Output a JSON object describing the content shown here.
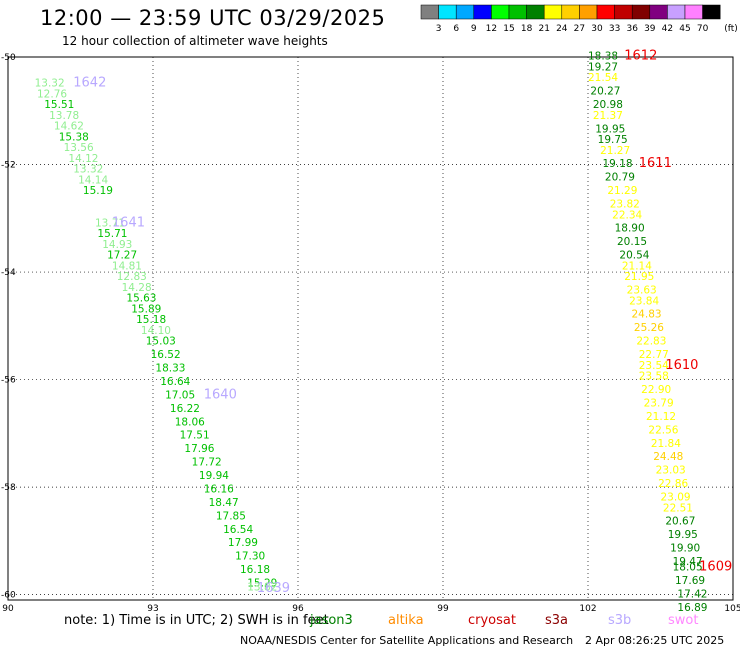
{
  "header": {
    "title": "12:00 — 23:59 UTC 03/29/2025",
    "subtitle": "12 hour collection of altimeter wave heights"
  },
  "colorbar": {
    "labels": [
      "3",
      "6",
      "9",
      "12",
      "15",
      "18",
      "21",
      "24",
      "27",
      "30",
      "33",
      "36",
      "39",
      "42",
      "45",
      "70"
    ],
    "unit": "(ft)",
    "colors": [
      "#808080",
      "#00e5ff",
      "#00a8ff",
      "#0000ff",
      "#00ff00",
      "#00c000",
      "#008000",
      "#ffff00",
      "#ffd000",
      "#ffa000",
      "#ff0000",
      "#c00000",
      "#800000",
      "#800080",
      "#c8a0ff",
      "#ff80ff",
      "#000000"
    ]
  },
  "footer": {
    "note": "note:  1) Time is in UTC; 2) SWH is in feet",
    "satellites": [
      {
        "name": "jason3",
        "color": "#008000"
      },
      {
        "name": "altika",
        "color": "#ff8c00"
      },
      {
        "name": "cryosat",
        "color": "#cc0000"
      },
      {
        "name": "s3a",
        "color": "#8b0000"
      },
      {
        "name": "s3b",
        "color": "#b8a8ff"
      },
      {
        "name": "swot",
        "color": "#ff88ff"
      }
    ],
    "credit": "NOAA/NESDIS Center for Satellite Applications and Research",
    "date": "2 Apr 08:26:25 UTC 2025"
  },
  "chart_data": {
    "type": "scatter",
    "title": "12:00 — 23:59 UTC 03/29/2025",
    "xlim": [
      90,
      105
    ],
    "ylim": [
      -60.1,
      -50
    ],
    "x_ticks": [
      "90",
      "93",
      "96",
      "99",
      "102",
      "105"
    ],
    "y_ticks": [
      "-50",
      "-52",
      "-54",
      "-56",
      "-58",
      "-60"
    ],
    "grid": true,
    "series": [
      {
        "name": "left",
        "points": [
          {
            "x": 90.55,
            "y": -50.55,
            "v": "13.32",
            "c": "#90ee90"
          },
          {
            "x": 90.6,
            "y": -50.75,
            "v": "12.76",
            "c": "#90ee90"
          },
          {
            "x": 90.75,
            "y": -50.95,
            "v": "15.51",
            "c": "#00c000"
          },
          {
            "x": 90.85,
            "y": -51.15,
            "v": "13.78",
            "c": "#90ee90"
          },
          {
            "x": 90.95,
            "y": -51.35,
            "v": "14.62",
            "c": "#90ee90"
          },
          {
            "x": 91.05,
            "y": -51.55,
            "v": "15.38",
            "c": "#00c000"
          },
          {
            "x": 91.15,
            "y": -51.75,
            "v": "13.56",
            "c": "#90ee90"
          },
          {
            "x": 91.25,
            "y": -51.95,
            "v": "14.12",
            "c": "#90ee90"
          },
          {
            "x": 91.35,
            "y": -52.15,
            "v": "13.32",
            "c": "#90ee90"
          },
          {
            "x": 91.45,
            "y": -52.35,
            "v": "14.14",
            "c": "#90ee90"
          },
          {
            "x": 91.55,
            "y": -52.55,
            "v": "15.19",
            "c": "#00c000"
          },
          {
            "x": 91.8,
            "y": -53.15,
            "v": "13.71",
            "c": "#90ee90"
          },
          {
            "x": 91.85,
            "y": -53.35,
            "v": "15.71",
            "c": "#00c000"
          },
          {
            "x": 91.95,
            "y": -53.55,
            "v": "14.93",
            "c": "#90ee90"
          },
          {
            "x": 92.05,
            "y": -53.75,
            "v": "17.27",
            "c": "#00c000"
          },
          {
            "x": 92.15,
            "y": -53.95,
            "v": "14.81",
            "c": "#90ee90"
          },
          {
            "x": 92.25,
            "y": -54.15,
            "v": "12.83",
            "c": "#90ee90"
          },
          {
            "x": 92.35,
            "y": -54.35,
            "v": "14.28",
            "c": "#90ee90"
          },
          {
            "x": 92.45,
            "y": -54.55,
            "v": "15.63",
            "c": "#00c000"
          },
          {
            "x": 92.55,
            "y": -54.75,
            "v": "15.89",
            "c": "#00c000"
          },
          {
            "x": 92.65,
            "y": -54.95,
            "v": "15.18",
            "c": "#00c000"
          },
          {
            "x": 92.75,
            "y": -55.15,
            "v": "14.10",
            "c": "#90ee90"
          },
          {
            "x": 92.85,
            "y": -55.35,
            "v": "15.03",
            "c": "#00c000"
          },
          {
            "x": 92.95,
            "y": -55.6,
            "v": "16.52",
            "c": "#00c000"
          },
          {
            "x": 93.05,
            "y": -55.85,
            "v": "18.33",
            "c": "#00c000"
          },
          {
            "x": 93.15,
            "y": -56.1,
            "v": "16.64",
            "c": "#00c000"
          },
          {
            "x": 93.25,
            "y": -56.35,
            "v": "17.05",
            "c": "#00c000"
          },
          {
            "x": 93.35,
            "y": -56.6,
            "v": "16.22",
            "c": "#00c000"
          },
          {
            "x": 93.45,
            "y": -56.85,
            "v": "18.06",
            "c": "#00c000"
          },
          {
            "x": 93.55,
            "y": -57.1,
            "v": "17.51",
            "c": "#00c000"
          },
          {
            "x": 93.65,
            "y": -57.35,
            "v": "17.96",
            "c": "#00c000"
          },
          {
            "x": 93.8,
            "y": -57.6,
            "v": "17.72",
            "c": "#00c000"
          },
          {
            "x": 93.95,
            "y": -57.85,
            "v": "19.94",
            "c": "#00c000"
          },
          {
            "x": 94.05,
            "y": -58.1,
            "v": "16.16",
            "c": "#00c000"
          },
          {
            "x": 94.15,
            "y": -58.35,
            "v": "18.47",
            "c": "#00c000"
          },
          {
            "x": 94.3,
            "y": -58.6,
            "v": "17.85",
            "c": "#00c000"
          },
          {
            "x": 94.45,
            "y": -58.85,
            "v": "16.54",
            "c": "#00c000"
          },
          {
            "x": 94.55,
            "y": -59.1,
            "v": "17.99",
            "c": "#00c000"
          },
          {
            "x": 94.7,
            "y": -59.35,
            "v": "17.30",
            "c": "#00c000"
          },
          {
            "x": 94.8,
            "y": -59.6,
            "v": "16.18",
            "c": "#00c000"
          },
          {
            "x": 94.95,
            "y": -59.85,
            "v": "15.29",
            "c": "#00c000"
          },
          {
            "x": 94.95,
            "y": -59.92,
            "v": "13.82",
            "c": "#90ee90"
          }
        ]
      },
      {
        "name": "right",
        "points": [
          {
            "x": 102.0,
            "y": -50.05,
            "v": "18.38",
            "c": "#008000"
          },
          {
            "x": 102.0,
            "y": -50.25,
            "v": "19.27",
            "c": "#008000"
          },
          {
            "x": 102.0,
            "y": -50.45,
            "v": "21.54",
            "c": "#ffff00"
          },
          {
            "x": 102.05,
            "y": -50.7,
            "v": "20.27",
            "c": "#008000"
          },
          {
            "x": 102.1,
            "y": -50.95,
            "v": "20.98",
            "c": "#008000"
          },
          {
            "x": 102.1,
            "y": -51.15,
            "v": "21.37",
            "c": "#ffff00"
          },
          {
            "x": 102.15,
            "y": -51.4,
            "v": "19.95",
            "c": "#008000"
          },
          {
            "x": 102.2,
            "y": -51.6,
            "v": "19.75",
            "c": "#008000"
          },
          {
            "x": 102.25,
            "y": -51.8,
            "v": "21.27",
            "c": "#ffff00"
          },
          {
            "x": 102.3,
            "y": -52.05,
            "v": "19.18",
            "c": "#008000"
          },
          {
            "x": 102.35,
            "y": -52.3,
            "v": "20.79",
            "c": "#008000"
          },
          {
            "x": 102.4,
            "y": -52.55,
            "v": "21.29",
            "c": "#ffff00"
          },
          {
            "x": 102.45,
            "y": -52.8,
            "v": "23.82",
            "c": "#ffff00"
          },
          {
            "x": 102.5,
            "y": -53.0,
            "v": "22.34",
            "c": "#ffff00"
          },
          {
            "x": 102.55,
            "y": -53.25,
            "v": "18.90",
            "c": "#008000"
          },
          {
            "x": 102.6,
            "y": -53.5,
            "v": "20.15",
            "c": "#008000"
          },
          {
            "x": 102.65,
            "y": -53.75,
            "v": "20.54",
            "c": "#008000"
          },
          {
            "x": 102.7,
            "y": -53.95,
            "v": "21.14",
            "c": "#ffff00"
          },
          {
            "x": 102.75,
            "y": -54.15,
            "v": "21.95",
            "c": "#ffff00"
          },
          {
            "x": 102.8,
            "y": -54.4,
            "v": "23.63",
            "c": "#ffff00"
          },
          {
            "x": 102.85,
            "y": -54.6,
            "v": "23.84",
            "c": "#ffff00"
          },
          {
            "x": 102.9,
            "y": -54.85,
            "v": "24.83",
            "c": "#ffd000"
          },
          {
            "x": 102.95,
            "y": -55.1,
            "v": "25.26",
            "c": "#ffd000"
          },
          {
            "x": 103.0,
            "y": -55.35,
            "v": "22.83",
            "c": "#ffff00"
          },
          {
            "x": 103.05,
            "y": -55.6,
            "v": "22.77",
            "c": "#ffff00"
          },
          {
            "x": 103.05,
            "y": -55.8,
            "v": "23.54",
            "c": "#ffff00"
          },
          {
            "x": 103.05,
            "y": -56.0,
            "v": "23.58",
            "c": "#ffff00"
          },
          {
            "x": 103.1,
            "y": -56.25,
            "v": "22.90",
            "c": "#ffff00"
          },
          {
            "x": 103.15,
            "y": -56.5,
            "v": "23.79",
            "c": "#ffff00"
          },
          {
            "x": 103.2,
            "y": -56.75,
            "v": "21.12",
            "c": "#ffff00"
          },
          {
            "x": 103.25,
            "y": -57.0,
            "v": "22.56",
            "c": "#ffff00"
          },
          {
            "x": 103.3,
            "y": -57.25,
            "v": "21.84",
            "c": "#ffff00"
          },
          {
            "x": 103.35,
            "y": -57.5,
            "v": "24.48",
            "c": "#ffd000"
          },
          {
            "x": 103.4,
            "y": -57.75,
            "v": "23.03",
            "c": "#ffff00"
          },
          {
            "x": 103.45,
            "y": -58.0,
            "v": "22.86",
            "c": "#ffff00"
          },
          {
            "x": 103.5,
            "y": -58.25,
            "v": "23.09",
            "c": "#ffff00"
          },
          {
            "x": 103.55,
            "y": -58.45,
            "v": "22.51",
            "c": "#ffff00"
          },
          {
            "x": 103.6,
            "y": -58.7,
            "v": "20.67",
            "c": "#008000"
          },
          {
            "x": 103.65,
            "y": -58.95,
            "v": "19.95",
            "c": "#008000"
          },
          {
            "x": 103.7,
            "y": -59.2,
            "v": "19.90",
            "c": "#008000"
          },
          {
            "x": 103.75,
            "y": -59.45,
            "v": "19.47",
            "c": "#008000"
          },
          {
            "x": 103.75,
            "y": -59.55,
            "v": "18.05",
            "c": "#008000"
          },
          {
            "x": 103.8,
            "y": -59.8,
            "v": "17.69",
            "c": "#008000"
          },
          {
            "x": 103.85,
            "y": -60.05,
            "v": "17.42",
            "c": "#008000"
          },
          {
            "x": 103.85,
            "y": -60.3,
            "v": "16.89",
            "c": "#008000"
          }
        ]
      }
    ],
    "annotations": [
      {
        "x": 91.35,
        "y": -50.55,
        "text": "1642",
        "color": "#b8a8ff"
      },
      {
        "x": 92.15,
        "y": -53.15,
        "text": "1641",
        "color": "#b8a8ff"
      },
      {
        "x": 94.05,
        "y": -56.35,
        "text": "1640",
        "color": "#b8a8ff"
      },
      {
        "x": 95.15,
        "y": -59.95,
        "text": "1639",
        "color": "#b8a8ff"
      },
      {
        "x": 102.75,
        "y": -50.05,
        "text": "1612",
        "color": "#ee0000"
      },
      {
        "x": 103.05,
        "y": -52.05,
        "text": "1611",
        "color": "#ee0000"
      },
      {
        "x": 103.6,
        "y": -55.8,
        "text": "1610",
        "color": "#ee0000"
      },
      {
        "x": 104.3,
        "y": -59.55,
        "text": "1609",
        "color": "#ee0000"
      }
    ]
  }
}
